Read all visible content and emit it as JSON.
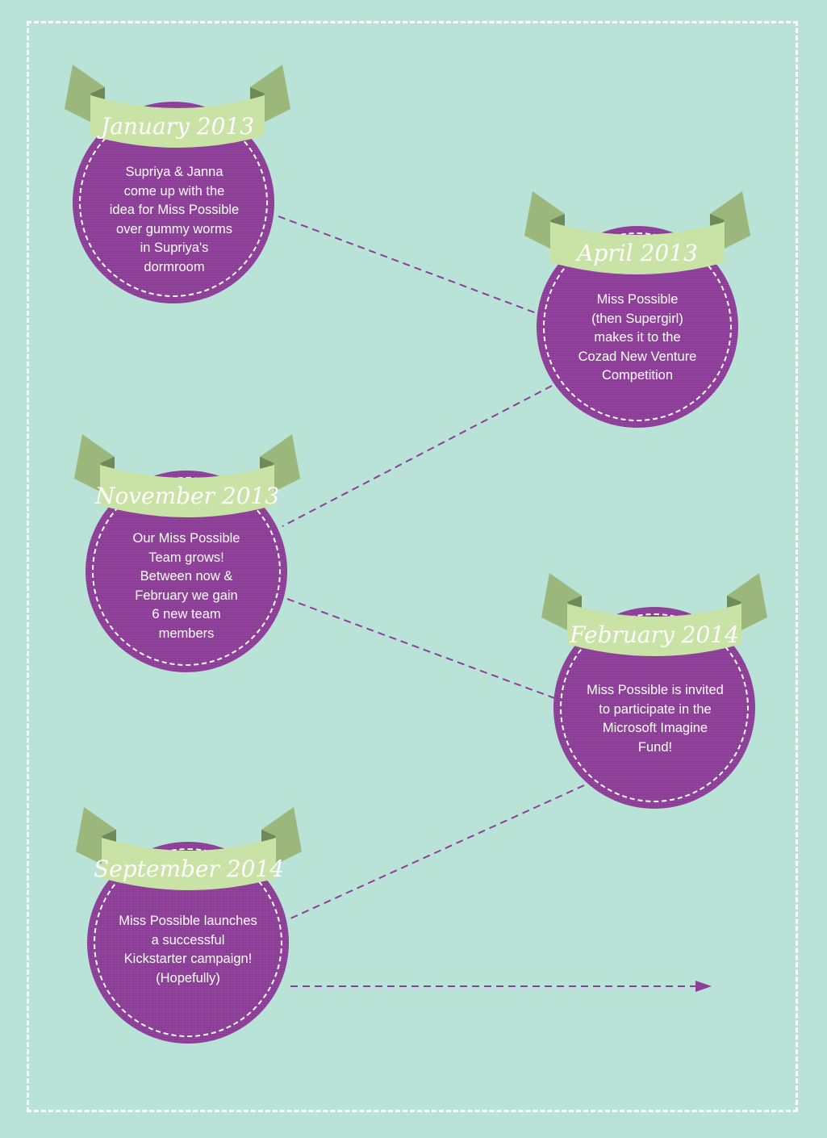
{
  "colors": {
    "background": "#bae3d7",
    "disc": "#8e3d99",
    "banner": "#c9e3a6",
    "ribbon_tail": "#9bb77c",
    "ribbon_fold": "#6f8a58",
    "connector": "#8e3d99",
    "frame": "#ffffff"
  },
  "events": [
    {
      "date": "January 2013",
      "text": "Supriya & Janna\ncome up with the\nidea for Miss Possible\nover gummy worms\nin Supriya's\ndormroom"
    },
    {
      "date": "April 2013",
      "text": "Miss Possible\n(then Supergirl)\nmakes it to the\nCozad New Venture\nCompetition"
    },
    {
      "date": "November 2013",
      "text": "Our Miss Possible\nTeam grows!\nBetween now &\nFebruary we gain\n6  new team\nmembers"
    },
    {
      "date": "February 2014",
      "text": "Miss Possible is invited\nto participate in the\nMicrosoft Imagine\nFund!"
    },
    {
      "date": "September 2014",
      "text": "Miss Possible launches\na successful\nKickstarter campaign!\n(Hopefully)"
    }
  ],
  "connectors": [
    {
      "from": "January 2013",
      "to": "April 2013"
    },
    {
      "from": "April 2013",
      "to": "November 2013"
    },
    {
      "from": "November 2013",
      "to": "February 2014"
    },
    {
      "from": "February 2014",
      "to": "September 2014"
    },
    {
      "from": "September 2014",
      "to": "arrow-head"
    }
  ]
}
